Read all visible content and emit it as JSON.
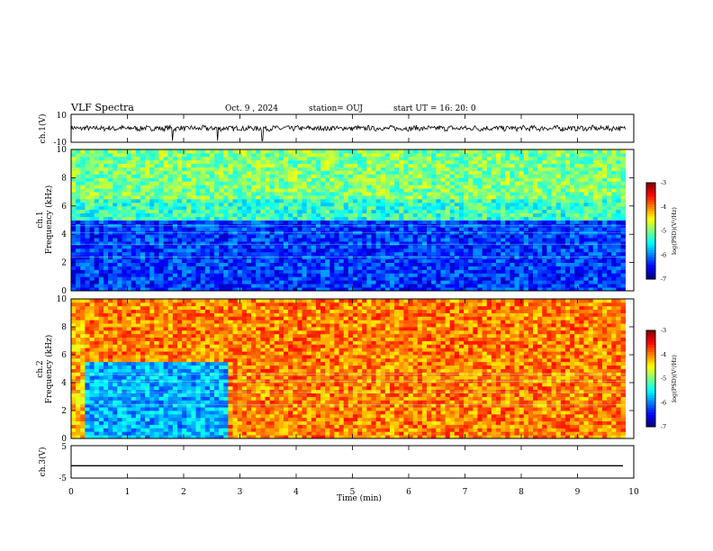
{
  "header": {
    "title": "VLF Spectra",
    "date": "Oct. 9 , 2024",
    "station": "station= OUJ",
    "start_ut": "start UT =  16: 20: 0"
  },
  "chart_data": [
    {
      "type": "line",
      "id": "ch1-waveform",
      "ylabel": "ch.1(V)",
      "ylim": [
        -10,
        10
      ],
      "y_ticks": [
        "10",
        "-10"
      ],
      "xlim": [
        0,
        10
      ],
      "description_values": {
        "baseline_v": 0,
        "typical_amplitude_v": 3,
        "spikes_min": [
          1.8,
          2.6,
          3.4
        ]
      }
    },
    {
      "type": "heatmap",
      "id": "ch1-spectrogram",
      "ylabel": "ch.1\nFrequency (kHz)",
      "ylim": [
        0,
        10
      ],
      "xlim": [
        0,
        10
      ],
      "y_ticks": [
        "0",
        "2",
        "4",
        "6",
        "8",
        "10"
      ],
      "colorbar": {
        "label": "log(PSD)(V²/Hz)",
        "range": [
          -7,
          -3
        ],
        "ticks": [
          "-3",
          "-4",
          "-5",
          "-6",
          "-7"
        ]
      },
      "regions": [
        {
          "f_khz": [
            0,
            5
          ],
          "log_psd": -6.3
        },
        {
          "f_khz": [
            5,
            6.5
          ],
          "log_psd": -5.3
        },
        {
          "f_khz": [
            6.5,
            10
          ],
          "log_psd": -5.0
        }
      ]
    },
    {
      "type": "heatmap",
      "id": "ch2-spectrogram",
      "ylabel": "ch.2\nFrequency (kHz)",
      "ylim": [
        0,
        10
      ],
      "xlim": [
        0,
        10
      ],
      "y_ticks": [
        "0",
        "2",
        "4",
        "6",
        "8",
        "10"
      ],
      "colorbar": {
        "label": "log(PSD)(V²/Hz)",
        "range": [
          -7,
          -3
        ],
        "ticks": [
          "-3",
          "-4",
          "-5",
          "-6",
          "-7"
        ]
      },
      "regions": [
        {
          "t_min": [
            0,
            0.25
          ],
          "f_khz": [
            0,
            10
          ],
          "log_psd": -4.2
        },
        {
          "t_min": [
            0.25,
            2.75
          ],
          "f_khz": [
            0,
            5.5
          ],
          "log_psd": -5.8
        },
        {
          "t_min": [
            0.25,
            2.75
          ],
          "f_khz": [
            5.5,
            10
          ],
          "log_psd": -4.0
        },
        {
          "t_min": [
            2.75,
            9.85
          ],
          "f_khz": [
            0,
            10
          ],
          "log_psd": -4.0
        }
      ]
    },
    {
      "type": "line",
      "id": "ch3-waveform",
      "ylabel": "ch.3(V)",
      "ylim": [
        -5,
        5
      ],
      "xlim": [
        0,
        10
      ],
      "y_ticks": [
        "5",
        "0",
        "-5"
      ],
      "values_constant_v": -1.2
    }
  ],
  "x_axis": {
    "label": "Time (min)",
    "ticks": [
      "0",
      "1",
      "2",
      "3",
      "4",
      "5",
      "6",
      "7",
      "8",
      "9",
      "10"
    ]
  }
}
